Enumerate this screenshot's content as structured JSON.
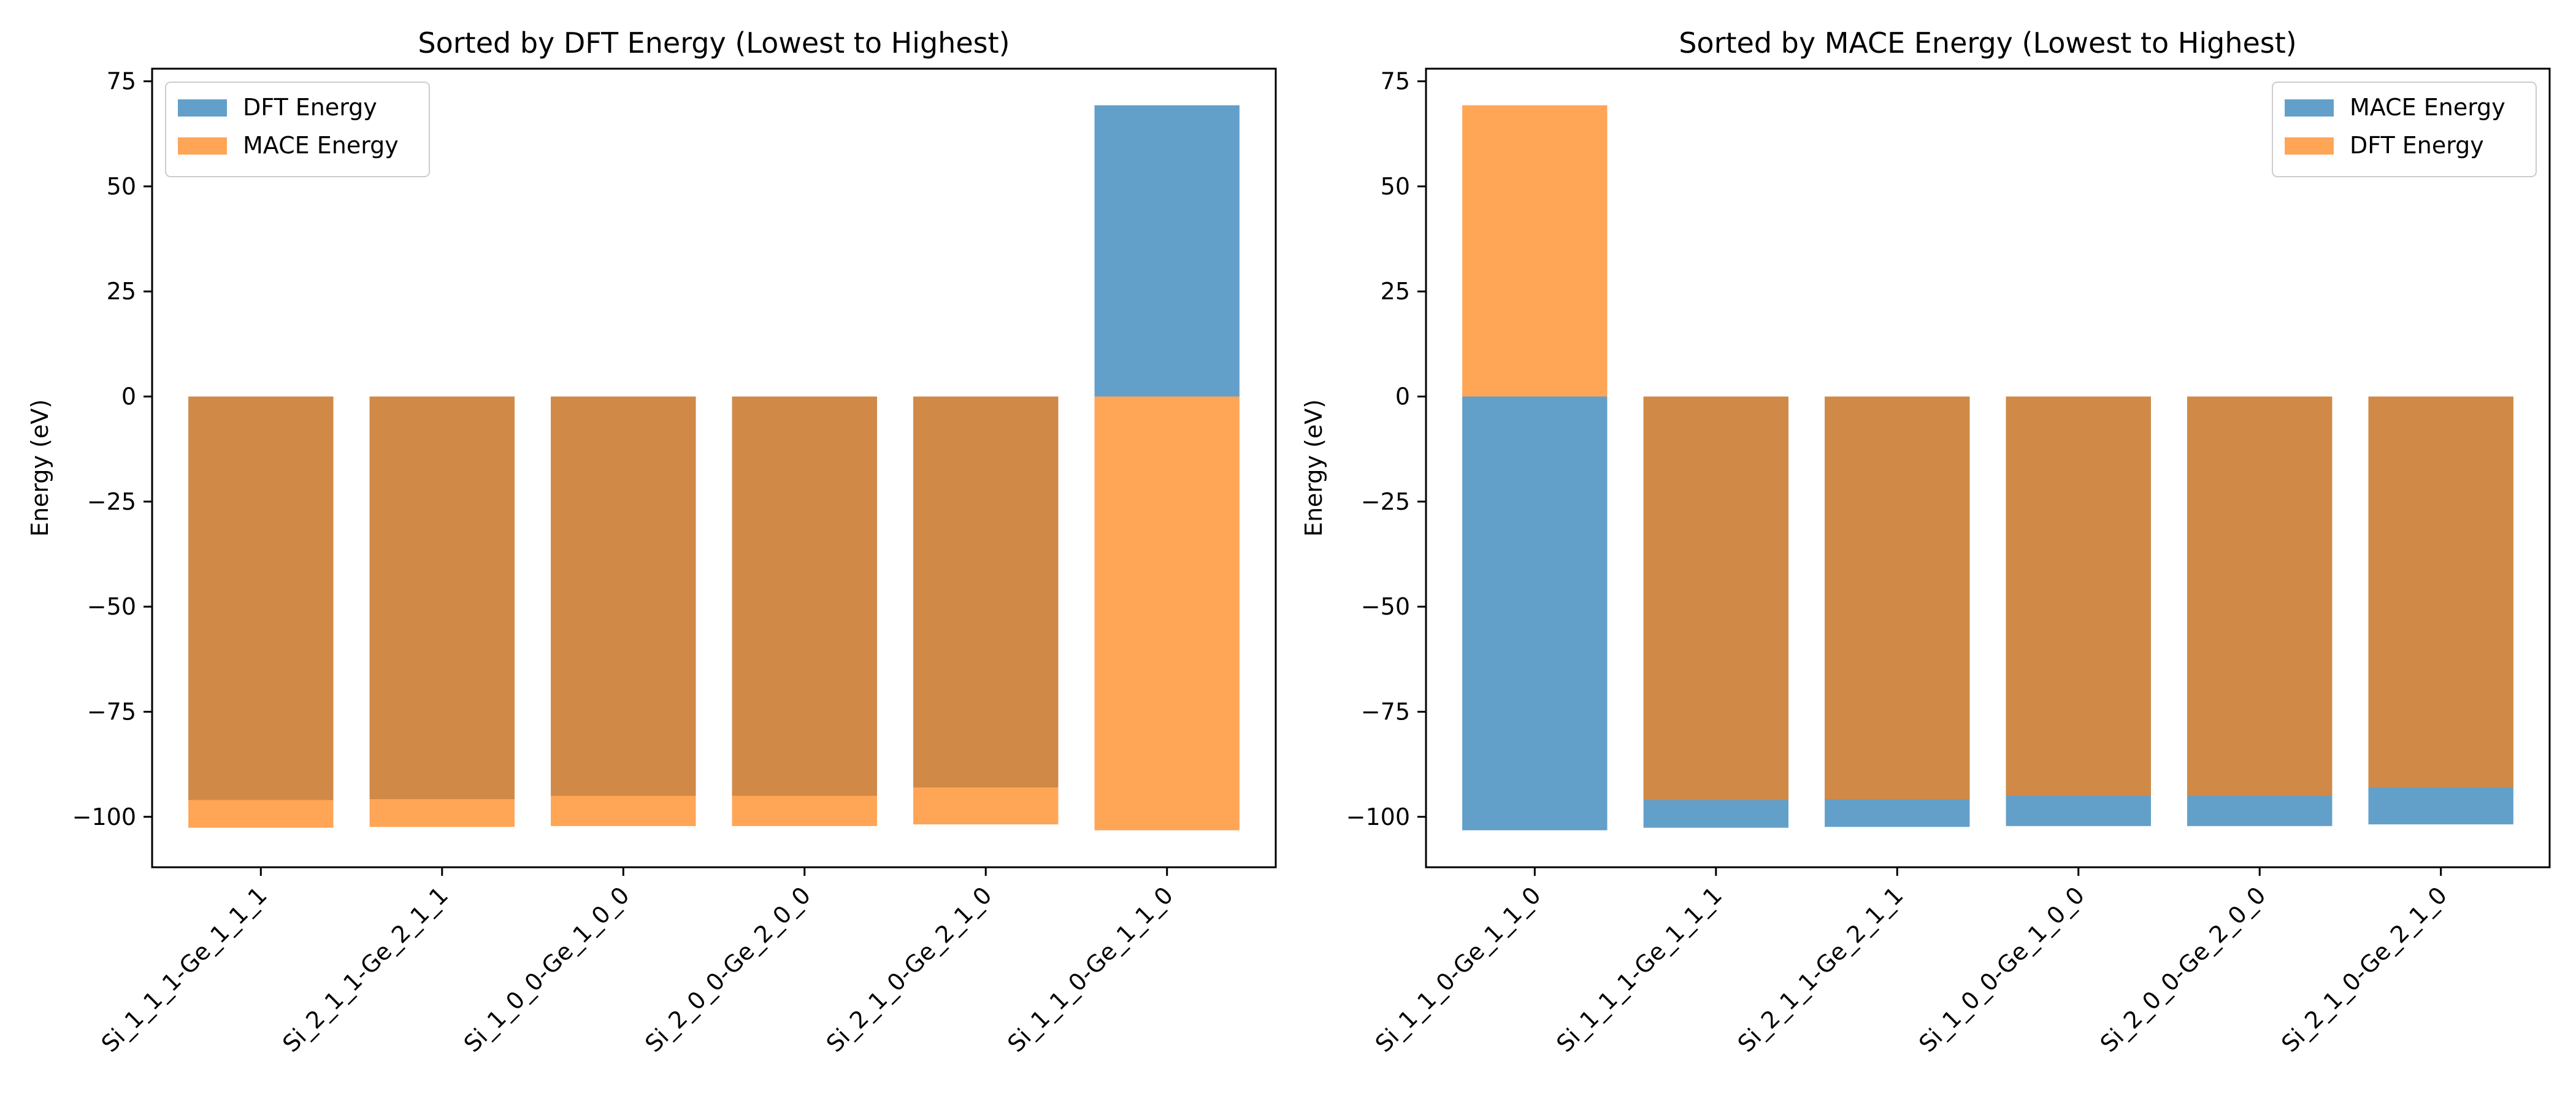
{
  "figure": {
    "panels": [
      {
        "name": "dft-sorted",
        "legend_position": "upper-left"
      },
      {
        "name": "mace-sorted",
        "legend_position": "upper-right"
      }
    ]
  },
  "chart_data": [
    {
      "type": "bar",
      "title": "Sorted by DFT Energy (Lowest to Highest)",
      "xlabel": "",
      "ylabel": "Energy (eV)",
      "ylim": [
        -112,
        78
      ],
      "yticks": [
        -100,
        -75,
        -50,
        -25,
        0,
        25,
        50,
        75
      ],
      "ytick_labels": [
        "−100",
        "−75",
        "−50",
        "−25",
        "0",
        "25",
        "50",
        "75"
      ],
      "categories": [
        "Si_1_1_1-Ge_1_1_1",
        "Si_2_1_1-Ge_2_1_1",
        "Si_1_0_0-Ge_1_0_0",
        "Si_2_0_0-Ge_2_0_0",
        "Si_2_1_0-Ge_2_1_0",
        "Si_1_1_0-Ge_1_1_0"
      ],
      "legend": [
        "DFT Energy",
        "MACE Energy"
      ],
      "legend_position": "upper-left",
      "grid": false,
      "series": [
        {
          "name": "DFT Energy",
          "color": "#1f77b4",
          "alpha": 0.7,
          "values": [
            -96.0,
            -95.8,
            -95.0,
            -95.0,
            -93.0,
            69.3
          ]
        },
        {
          "name": "MACE Energy",
          "color": "#ff7f0e",
          "alpha": 0.7,
          "values": [
            -102.6,
            -102.4,
            -102.2,
            -102.2,
            -101.8,
            -103.2
          ]
        }
      ]
    },
    {
      "type": "bar",
      "title": "Sorted by MACE Energy (Lowest to Highest)",
      "xlabel": "",
      "ylabel": "Energy (eV)",
      "ylim": [
        -112,
        78
      ],
      "yticks": [
        -100,
        -75,
        -50,
        -25,
        0,
        25,
        50,
        75
      ],
      "ytick_labels": [
        "−100",
        "−75",
        "−50",
        "−25",
        "0",
        "25",
        "50",
        "75"
      ],
      "categories": [
        "Si_1_1_0-Ge_1_1_0",
        "Si_1_1_1-Ge_1_1_1",
        "Si_2_1_1-Ge_2_1_1",
        "Si_1_0_0-Ge_1_0_0",
        "Si_2_0_0-Ge_2_0_0",
        "Si_2_1_0-Ge_2_1_0"
      ],
      "legend": [
        "MACE Energy",
        "DFT Energy"
      ],
      "legend_position": "upper-right",
      "grid": false,
      "series": [
        {
          "name": "MACE Energy",
          "color": "#1f77b4",
          "alpha": 0.7,
          "values": [
            -103.2,
            -102.6,
            -102.4,
            -102.2,
            -102.2,
            -101.8
          ]
        },
        {
          "name": "DFT Energy",
          "color": "#ff7f0e",
          "alpha": 0.7,
          "values": [
            69.3,
            -96.0,
            -95.8,
            -95.0,
            -95.0,
            -93.0
          ]
        }
      ]
    }
  ]
}
